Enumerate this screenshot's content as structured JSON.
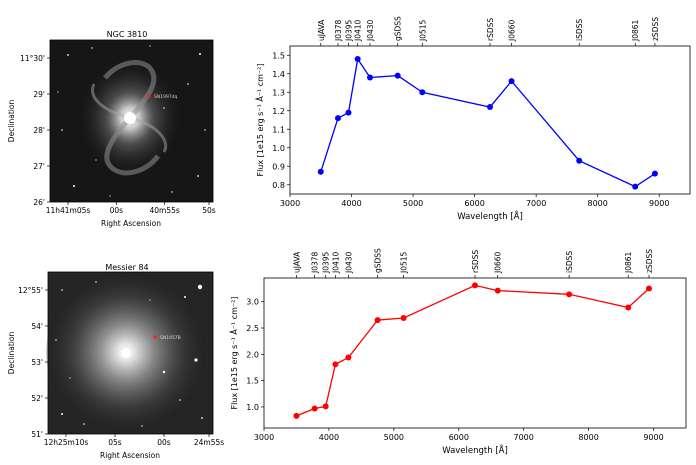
{
  "panels": [
    {
      "image": {
        "title": "NGC 3810",
        "xlabel": "Right Ascension",
        "ylabel": "Declination",
        "xticks": [
          "11h41m05s",
          "00s",
          "40m55s",
          "50s"
        ],
        "yticks": [
          "11°30'",
          "29'",
          "28'",
          "27'",
          "26'"
        ],
        "marker_label": "SN1997dq"
      },
      "chart_data": {
        "type": "line",
        "xlabel": "Wavelength [Å]",
        "ylabel": "Flux [1e15 erg s⁻¹ Å⁻¹ cm⁻²]",
        "color": "#0000ff",
        "xlim": [
          3000,
          9500
        ],
        "ylim": [
          0.75,
          1.55
        ],
        "xticks": [
          3000,
          4000,
          5000,
          6000,
          7000,
          8000,
          9000
        ],
        "yticks": [
          0.8,
          0.9,
          1.0,
          1.1,
          1.2,
          1.3,
          1.4,
          1.5
        ],
        "filters": [
          {
            "name": "uJAVA",
            "x": 3500
          },
          {
            "name": "J0378",
            "x": 3780
          },
          {
            "name": "J0395",
            "x": 3950
          },
          {
            "name": "J0410",
            "x": 4100
          },
          {
            "name": "J0430",
            "x": 4300
          },
          {
            "name": "gSDSS",
            "x": 4750
          },
          {
            "name": "J0515",
            "x": 5150
          },
          {
            "name": "rSDSS",
            "x": 6250
          },
          {
            "name": "J0660",
            "x": 6600
          },
          {
            "name": "iSDSS",
            "x": 7700
          },
          {
            "name": "J0861",
            "x": 8610
          },
          {
            "name": "zSDSS",
            "x": 8930
          }
        ],
        "x": [
          3500,
          3780,
          3950,
          4100,
          4300,
          4750,
          5150,
          6250,
          6600,
          7700,
          8610,
          8930
        ],
        "values": [
          0.87,
          1.16,
          1.19,
          1.48,
          1.38,
          1.39,
          1.3,
          1.22,
          1.36,
          0.93,
          0.79,
          0.86
        ]
      }
    },
    {
      "image": {
        "title": "Messier 84",
        "xlabel": "Right Ascension",
        "ylabel": "Declination",
        "xticks": [
          "12h25m10s",
          "05s",
          "00s",
          "24m55s"
        ],
        "yticks": [
          "12°55'",
          "54'",
          "53'",
          "52'",
          "51'"
        ],
        "marker_label": "SN1957B"
      },
      "chart_data": {
        "type": "line",
        "xlabel": "Wavelength [Å]",
        "ylabel": "Flux [1e15 erg s⁻¹ Å⁻¹ cm⁻²]",
        "color": "#ff0000",
        "xlim": [
          3000,
          9500
        ],
        "ylim": [
          0.6,
          3.45
        ],
        "xticks": [
          3000,
          4000,
          5000,
          6000,
          7000,
          8000,
          9000
        ],
        "yticks": [
          1.0,
          1.5,
          2.0,
          2.5,
          3.0
        ],
        "filters": [
          {
            "name": "uJAVA",
            "x": 3500
          },
          {
            "name": "J0378",
            "x": 3780
          },
          {
            "name": "J0395",
            "x": 3950
          },
          {
            "name": "J0410",
            "x": 4100
          },
          {
            "name": "J0430",
            "x": 4300
          },
          {
            "name": "gSDSS",
            "x": 4750
          },
          {
            "name": "J0515",
            "x": 5150
          },
          {
            "name": "rSDSS",
            "x": 6250
          },
          {
            "name": "J0660",
            "x": 6600
          },
          {
            "name": "iSDSS",
            "x": 7700
          },
          {
            "name": "J0861",
            "x": 8610
          },
          {
            "name": "zSDSS",
            "x": 8930
          }
        ],
        "x": [
          3500,
          3780,
          3950,
          4100,
          4300,
          4750,
          5150,
          6250,
          6600,
          7700,
          8610,
          8930
        ],
        "values": [
          0.83,
          0.97,
          1.01,
          1.81,
          1.94,
          2.65,
          2.69,
          3.31,
          3.21,
          3.14,
          2.89,
          3.25
        ]
      }
    }
  ]
}
